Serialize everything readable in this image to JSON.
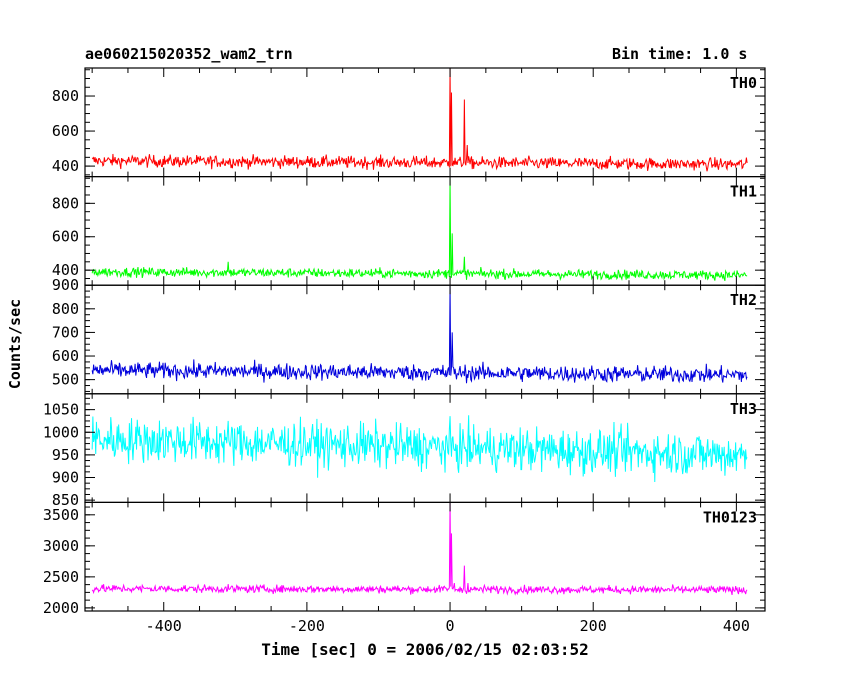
{
  "chart_data": {
    "type": "line",
    "title_left": "ae060215020352_wam2_trn",
    "title_right": "Bin time: 1.0 s",
    "xlabel": "Time [sec] 0 = 2006/02/15 02:03:52",
    "ylabel": "Counts/sec",
    "xlim": [
      -510,
      440
    ],
    "x_ticks": [
      -400,
      -200,
      0,
      200,
      400
    ],
    "grid": false,
    "x_range_data": [
      -500,
      415
    ],
    "panels": [
      {
        "name": "TH0",
        "color": "#ff0000",
        "ylim": [
          340,
          960
        ],
        "y_ticks": [
          400,
          600,
          800
        ],
        "baseline": 420,
        "noise": 25,
        "peaks": [
          [
            0,
            960
          ],
          [
            2,
            820
          ],
          [
            5,
            430
          ],
          [
            20,
            780
          ],
          [
            24,
            520
          ]
        ],
        "series": [
          {
            "x": [
              -500,
              -400,
              -300,
              -200,
              -100,
              -20,
              -5,
              0,
              2,
              5,
              10,
              20,
              24,
              30,
              100,
              200,
              300,
              415
            ],
            "y": [
              420,
              415,
              420,
              410,
              405,
              400,
              420,
              960,
              820,
              430,
              440,
              780,
              520,
              420,
              400,
              390,
              390,
              395
            ]
          }
        ]
      },
      {
        "name": "TH1",
        "color": "#00ff00",
        "ylim": [
          310,
          960
        ],
        "y_ticks": [
          400,
          600,
          800
        ],
        "baseline": 380,
        "noise": 20,
        "peaks": [
          [
            0,
            950
          ],
          [
            3,
            620
          ],
          [
            20,
            480
          ],
          [
            -310,
            450
          ]
        ],
        "series": [
          {
            "x": [
              -500,
              -400,
              -310,
              -300,
              -200,
              -100,
              -5,
              0,
              3,
              10,
              20,
              30,
              100,
              200,
              300,
              415
            ],
            "y": [
              380,
              380,
              450,
              380,
              380,
              375,
              380,
              950,
              620,
              420,
              480,
              380,
              370,
              365,
              365,
              370
            ]
          }
        ]
      },
      {
        "name": "TH2",
        "color": "#0000dd",
        "ylim": [
          440,
          900
        ],
        "y_ticks": [
          500,
          600,
          700,
          800,
          900
        ],
        "baseline": 530,
        "noise": 25,
        "peaks": [
          [
            0,
            900
          ],
          [
            3,
            700
          ]
        ],
        "series": [
          {
            "x": [
              -500,
              -400,
              -300,
              -200,
              -100,
              -5,
              0,
              3,
              10,
              100,
              200,
              300,
              415
            ],
            "y": [
              540,
              540,
              535,
              530,
              525,
              525,
              900,
              700,
              540,
              525,
              520,
              520,
              520
            ]
          }
        ]
      },
      {
        "name": "TH3",
        "color": "#00ffff",
        "ylim": [
          845,
          1085
        ],
        "y_ticks": [
          850,
          900,
          950,
          1000,
          1050
        ],
        "baseline": 965,
        "noise": 35,
        "peaks": [],
        "series": [
          {
            "x": [
              -500,
              -400,
              -300,
              -200,
              -100,
              0,
              100,
              200,
              300,
              415
            ],
            "y": [
              980,
              975,
              970,
              965,
              962,
              958,
              955,
              950,
              948,
              945
            ]
          }
        ]
      },
      {
        "name": "TH0123",
        "color": "#ff00ff",
        "ylim": [
          1950,
          3700
        ],
        "y_ticks": [
          2000,
          2500,
          3000,
          3500
        ],
        "baseline": 2300,
        "noise": 45,
        "peaks": [
          [
            0,
            3700
          ],
          [
            2,
            3200
          ],
          [
            6,
            2400
          ],
          [
            20,
            2680
          ],
          [
            25,
            2400
          ]
        ],
        "series": [
          {
            "x": [
              -500,
              -400,
              -300,
              -200,
              -100,
              -5,
              0,
              2,
              6,
              20,
              25,
              40,
              100,
              200,
              300,
              415
            ],
            "y": [
              2330,
              2320,
              2300,
              2280,
              2270,
              2260,
              3700,
              3200,
              2400,
              2680,
              2400,
              2250,
              2220,
              2200,
              2200,
              2200
            ]
          }
        ]
      }
    ]
  }
}
